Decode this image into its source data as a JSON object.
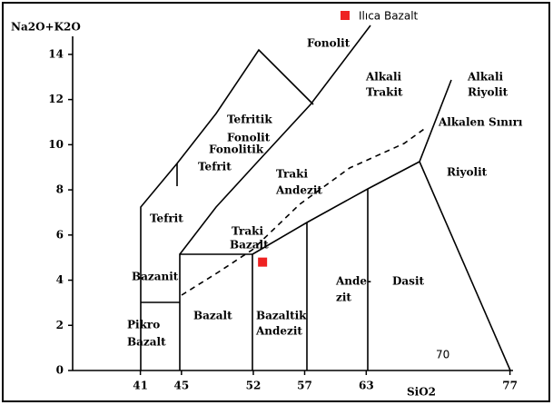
{
  "chart_data": {
    "type": "scatter",
    "x_label": "SiO2",
    "y_label": "Na2O+K2O",
    "xlim": [
      34.4,
      77.3
    ],
    "ylim": [
      0,
      14.8
    ],
    "xticks": [
      41,
      45,
      52,
      57,
      63,
      77
    ],
    "yticks": [
      0,
      2,
      4,
      6,
      8,
      10,
      12,
      14
    ],
    "series": [
      {
        "name": "Ilıca Bazalt",
        "color": "#ee2222",
        "x": [
          52.9
        ],
        "values": [
          4.8
        ]
      }
    ],
    "annotations": [
      "Fonolit",
      "Alkali",
      "Trakit",
      "Alkali",
      "Riyolit",
      "Tefritik",
      "Fonolit",
      "Alkalen Sınırı",
      "Fonolitik",
      "Tefrit",
      "Traki",
      "Andezit",
      "Riyolit",
      "Tefrit",
      "Traki",
      "Bazalt",
      "Bazanit",
      "Ande-",
      "zit",
      "Dasit",
      "Pikro",
      "Bazalt",
      "Bazalt",
      "Bazaltik",
      "Andezit",
      "70"
    ]
  }
}
